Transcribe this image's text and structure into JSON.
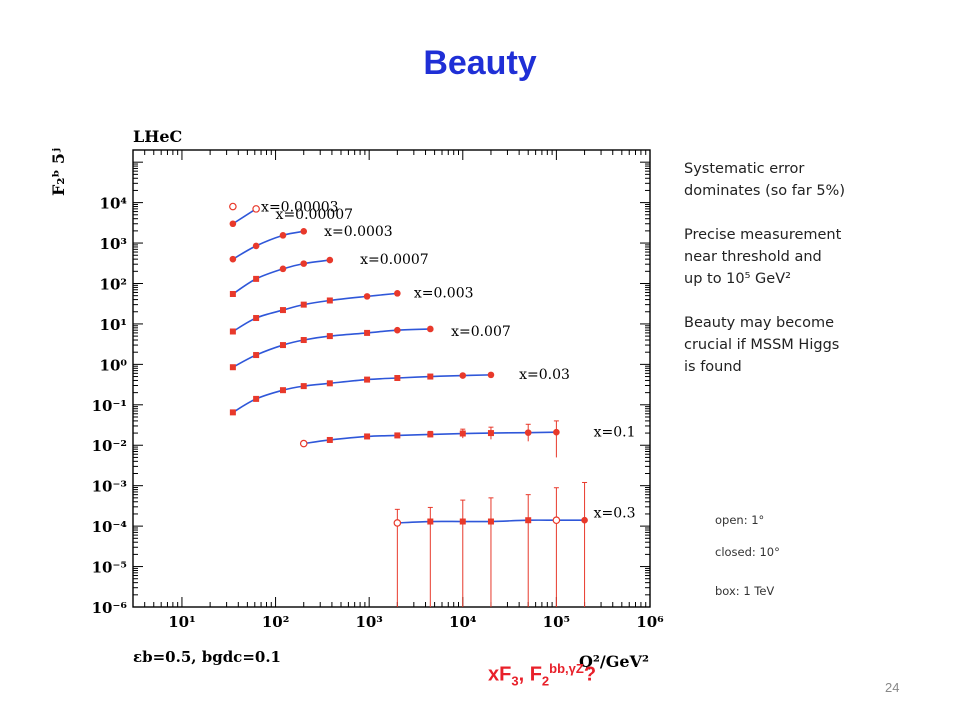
{
  "slide": {
    "title": "Beauty",
    "page_number": "24",
    "notes": [
      [
        "Systematic error",
        "dominates (so far 5%)"
      ],
      [
        "Precise measurement",
        "near threshold and",
        "up to 10⁵ GeV²"
      ],
      [
        "Beauty may become",
        "crucial if MSSM Higgs",
        "is found"
      ]
    ],
    "marker_legend": {
      "open": "open: 1°",
      "closed": "closed: 10°",
      "box": "box: 1 TeV"
    },
    "bottom_question": {
      "main": "xF",
      "sub1": "3",
      "mid": ", F",
      "sub2": "2",
      "sup": "bb,γZ",
      "end": "?"
    }
  },
  "chart_data": {
    "type": "scatter",
    "title": "LHeC",
    "ylabel": "F₂ᵇ 5ʲ",
    "xlabel": "Q²/GeV²",
    "footnote": "εb=0.5, bgdc=0.1",
    "x_scale": "log",
    "y_scale": "log",
    "xlim": [
      3,
      1000000
    ],
    "ylim": [
      1e-06,
      200000
    ],
    "x_ticks": [
      "10¹",
      "10²",
      "10³",
      "10⁴",
      "10⁵",
      "10⁶"
    ],
    "y_ticks": [
      "10⁻⁶",
      "10⁻⁵",
      "10⁻⁴",
      "10⁻³",
      "10⁻²",
      "10⁻¹",
      "10⁰",
      "10¹",
      "10²",
      "10³",
      "10⁴"
    ],
    "point_color": "#e8392b",
    "curve_color": "#2f57d9",
    "series": [
      {
        "name": "x=0.00003",
        "label_at": [
          70,
          8000
        ],
        "curve": false,
        "points": [
          {
            "x": 35,
            "y": 8000,
            "m": "open"
          }
        ]
      },
      {
        "name": "x=0.00007",
        "label_at": [
          100,
          5200
        ],
        "curve": true,
        "points": [
          {
            "x": 35,
            "y": 3000,
            "m": "closed"
          },
          {
            "x": 62,
            "y": 7000,
            "m": "open"
          }
        ]
      },
      {
        "name": "x=0.0003",
        "label_at": [
          330,
          2000
        ],
        "curve": true,
        "points": [
          {
            "x": 35,
            "y": 400,
            "m": "closed"
          },
          {
            "x": 62,
            "y": 850,
            "m": "closed"
          },
          {
            "x": 120,
            "y": 1550,
            "m": "closed"
          },
          {
            "x": 200,
            "y": 1950,
            "m": "closed"
          }
        ]
      },
      {
        "name": "x=0.0007",
        "label_at": [
          800,
          400
        ],
        "curve": true,
        "points": [
          {
            "x": 35,
            "y": 55,
            "m": "box"
          },
          {
            "x": 62,
            "y": 130,
            "m": "box"
          },
          {
            "x": 120,
            "y": 230,
            "m": "closed"
          },
          {
            "x": 200,
            "y": 310,
            "m": "closed"
          },
          {
            "x": 380,
            "y": 380,
            "m": "closed"
          }
        ]
      },
      {
        "name": "x=0.003",
        "label_at": [
          3000,
          60
        ],
        "curve": true,
        "points": [
          {
            "x": 35,
            "y": 6.5,
            "m": "box"
          },
          {
            "x": 62,
            "y": 14,
            "m": "box"
          },
          {
            "x": 120,
            "y": 22,
            "m": "box"
          },
          {
            "x": 200,
            "y": 30,
            "m": "box"
          },
          {
            "x": 380,
            "y": 38,
            "m": "box"
          },
          {
            "x": 950,
            "y": 48,
            "m": "closed"
          },
          {
            "x": 2000,
            "y": 57,
            "m": "closed"
          }
        ]
      },
      {
        "name": "x=0.007",
        "label_at": [
          7500,
          6.7
        ],
        "curve": true,
        "points": [
          {
            "x": 35,
            "y": 0.85,
            "m": "box"
          },
          {
            "x": 62,
            "y": 1.7,
            "m": "box"
          },
          {
            "x": 120,
            "y": 3.0,
            "m": "box"
          },
          {
            "x": 200,
            "y": 4.0,
            "m": "box"
          },
          {
            "x": 380,
            "y": 5.0,
            "m": "box"
          },
          {
            "x": 950,
            "y": 6.0,
            "m": "box"
          },
          {
            "x": 2000,
            "y": 7.0,
            "m": "closed"
          },
          {
            "x": 4500,
            "y": 7.5,
            "m": "closed"
          }
        ]
      },
      {
        "name": "x=0.03",
        "label_at": [
          40000,
          0.58
        ],
        "curve": true,
        "points": [
          {
            "x": 35,
            "y": 0.065,
            "m": "box"
          },
          {
            "x": 62,
            "y": 0.14,
            "m": "box"
          },
          {
            "x": 120,
            "y": 0.23,
            "m": "box"
          },
          {
            "x": 200,
            "y": 0.29,
            "m": "box"
          },
          {
            "x": 380,
            "y": 0.34,
            "m": "box"
          },
          {
            "x": 950,
            "y": 0.42,
            "m": "box"
          },
          {
            "x": 2000,
            "y": 0.46,
            "m": "box"
          },
          {
            "x": 4500,
            "y": 0.5,
            "m": "box"
          },
          {
            "x": 10000,
            "y": 0.53,
            "m": "closed"
          },
          {
            "x": 20000,
            "y": 0.55,
            "m": "closed"
          }
        ]
      },
      {
        "name": "x=0.1",
        "label_at": [
          250000,
          0.022
        ],
        "curve": true,
        "points": [
          {
            "x": 200,
            "y": 0.011,
            "m": "open",
            "elo": 0.011,
            "ehi": 0.011
          },
          {
            "x": 380,
            "y": 0.0135,
            "m": "box",
            "elo": 0.0135,
            "ehi": 0.0135
          },
          {
            "x": 950,
            "y": 0.0165,
            "m": "box",
            "elo": 0.0165,
            "ehi": 0.0165
          },
          {
            "x": 2000,
            "y": 0.0175,
            "m": "box",
            "elo": 0.016,
            "ehi": 0.019
          },
          {
            "x": 4500,
            "y": 0.0185,
            "m": "box",
            "elo": 0.016,
            "ehi": 0.022
          },
          {
            "x": 10000,
            "y": 0.0195,
            "m": "box",
            "elo": 0.015,
            "ehi": 0.025
          },
          {
            "x": 20000,
            "y": 0.02,
            "m": "box",
            "elo": 0.014,
            "ehi": 0.028
          },
          {
            "x": 50000,
            "y": 0.0205,
            "m": "closed",
            "elo": 0.0125,
            "ehi": 0.033
          },
          {
            "x": 100000,
            "y": 0.021,
            "m": "closed",
            "elo": 0.005,
            "ehi": 0.04
          }
        ]
      },
      {
        "name": "x=0.3",
        "label_at": [
          250000,
          0.00022
        ],
        "curve": true,
        "points": [
          {
            "x": 2000,
            "y": 0.00012,
            "m": "open",
            "elo": 1e-06,
            "ehi": 0.00026
          },
          {
            "x": 4500,
            "y": 0.00013,
            "m": "box",
            "elo": 1e-06,
            "ehi": 0.00029
          },
          {
            "x": 10000,
            "y": 0.00013,
            "m": "box",
            "elo": 1e-06,
            "ehi": 0.00044
          },
          {
            "x": 20000,
            "y": 0.00013,
            "m": "box",
            "elo": 1e-06,
            "ehi": 0.0005
          },
          {
            "x": 50000,
            "y": 0.00014,
            "m": "box",
            "elo": 1e-06,
            "ehi": 0.0006
          },
          {
            "x": 100000,
            "y": 0.00014,
            "m": "open",
            "elo": 1e-06,
            "ehi": 0.00089
          },
          {
            "x": 200000,
            "y": 0.00014,
            "m": "closed",
            "elo": 1e-06,
            "ehi": 0.0012
          }
        ]
      }
    ]
  }
}
